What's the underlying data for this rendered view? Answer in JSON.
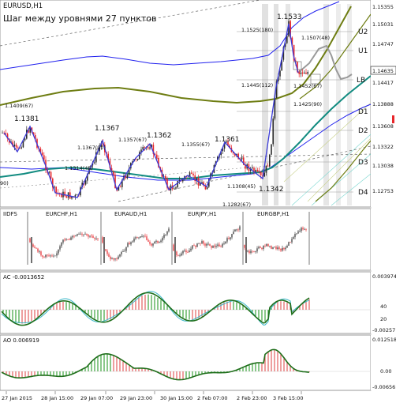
{
  "window": {
    "symbol_title": "EURUSD,H1",
    "annotation": "Шаг между уровнями 27 пунктов"
  },
  "price_axis": {
    "labels": [
      "1.15355",
      "1.15031",
      "1.14747",
      "1.14635",
      "1.14417",
      "1.13888",
      "1.13608",
      "1.13322",
      "1.13038",
      "1.12753"
    ],
    "current_price": "1.14635"
  },
  "levels": {
    "labels": [
      "U2",
      "U1",
      "LB",
      "D1",
      "D2",
      "D3",
      "D4"
    ]
  },
  "price_annotations": [
    "1.1533",
    "1.1525(180)",
    "1.1507(48)",
    "1.1445(112)",
    "1.1452(67)",
    "1.1425(90)",
    "1.1409(67)",
    "1.1381",
    "1.1367",
    "1.1367(90)",
    "1.1357(67)",
    "1.1362",
    "1.1355(67)",
    "1.1361",
    "1.1314(45)",
    "1.1308(45)",
    "1.1342",
    "1.1282(67)",
    "90)"
  ],
  "sub_panel_idfs": {
    "label": "IIDFS",
    "instruments": [
      "EURCHF,H1",
      "EURAUD,H1",
      "EURJPY,H1",
      "EURGBP,H1"
    ]
  },
  "sub_panel_ac": {
    "label": "AC -0.0013652",
    "axis": [
      "0.003974",
      "40",
      "20",
      "-0.00257"
    ]
  },
  "sub_panel_ao": {
    "label": "AO 0.006919",
    "axis": [
      "0.012518",
      "0.00",
      "-0.00656"
    ]
  },
  "time_axis": {
    "labels": [
      "27 Jan 2015",
      "28 Jan 15:00",
      "29 Jan 07:00",
      "29 Jan 23:00",
      "30 Jan 15:00",
      "2 Feb 07:00",
      "2 Feb 23:00",
      "3 Feb 15:00"
    ]
  },
  "colors": {
    "bull": "#2c2c2c",
    "bear": "#e8262a",
    "zigzag": "#3b3bd8",
    "blue_band": "#2222ee",
    "olive_line": "#6e7d12",
    "teal_line": "#118b80",
    "oscillator": "#1e6e1a",
    "osc_signal": "#39b7c8"
  }
}
